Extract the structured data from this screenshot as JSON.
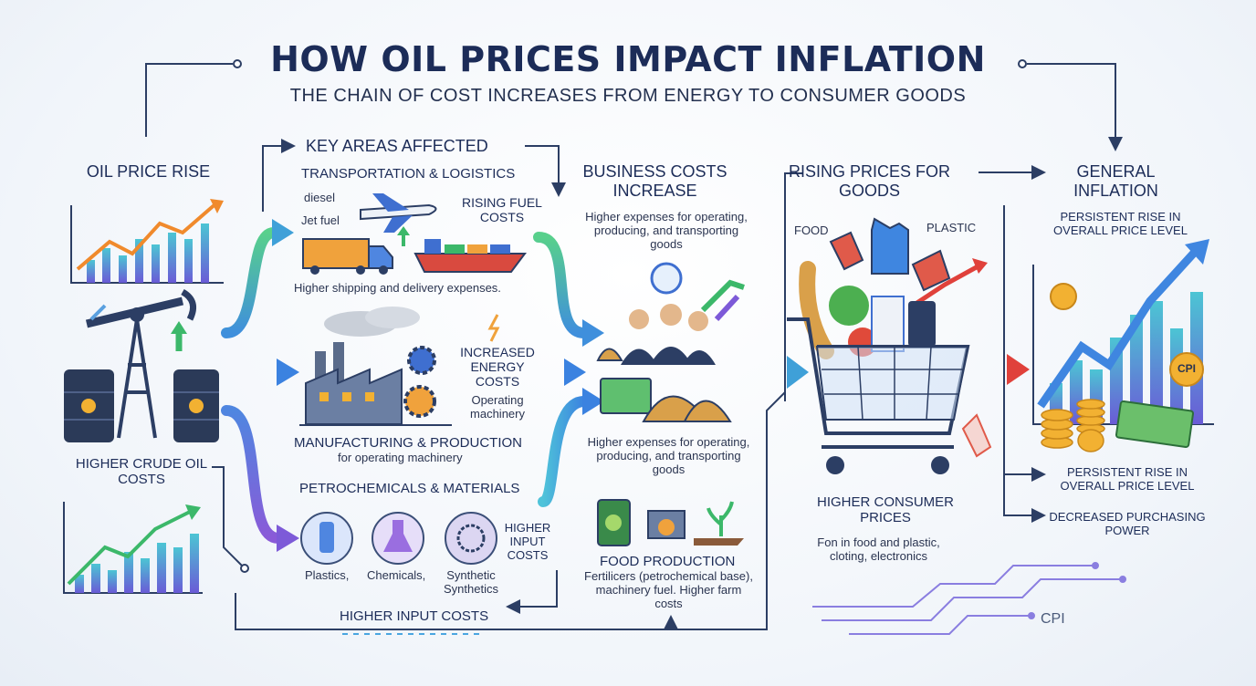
{
  "header": {
    "title": "HOW OIL PRICES IMPACT INFLATION",
    "subtitle": "THE CHAIN OF COST INCREASES FROM ENERGY TO CONSUMER GOODS"
  },
  "oil": {
    "heading": "OIL PRICE RISE",
    "caption": "HIGHER CRUDE OIL COSTS"
  },
  "areas": {
    "heading": "KEY AREAS AFFECTED",
    "transport": {
      "title": "TRANSPORTATION & LOGISTICS",
      "labels": [
        "diesel",
        "Jet fuel"
      ],
      "effect": "RISING FUEL COSTS",
      "note": "Higher shipping and delivery expenses."
    },
    "manufacturing": {
      "effect": "INCREASED ENERGY COSTS",
      "effect_note": "Operating machinery",
      "title": "MANUFACTURING & PRODUCTION",
      "note": "for operating machinery"
    },
    "petrochemicals": {
      "title": "PETROCHEMICALS & MATERIALS",
      "items": [
        "Plastics,",
        "Chemicals,",
        "Synthetic Synthetics"
      ],
      "effect": "HIGHER INPUT COSTS"
    },
    "footer": "HIGHER INPUT COSTS"
  },
  "business": {
    "heading": "BUSINESS COSTS INCREASE",
    "note_top": "Higher expenses for operating, producing, and transporting goods",
    "note_bottom": "Higher expenses for operating, producing, and transporting goods",
    "food": {
      "title": "FOOD PRODUCTION",
      "note": "Fertilicers (petrochemical base), machinery fuel. Higher farm costs"
    }
  },
  "prices": {
    "heading": "RISING PRICES FOR GOODS",
    "tags": [
      "FOOD",
      "PLASTIC"
    ],
    "caption": "HIGHER CONSUMER PRICES",
    "note": "Fon in food and plastic, cloting, electronics"
  },
  "inflation": {
    "heading": "GENERAL INFLATION",
    "note_top": "PERSISTENT RISE IN OVERALL PRICE LEVEL",
    "badge": "CPI",
    "bullets": [
      "PERSISTENT RISE IN OVERALL PRICE LEVEL",
      "DECREASED PURCHASING POWER"
    ],
    "footer": "CPI"
  }
}
